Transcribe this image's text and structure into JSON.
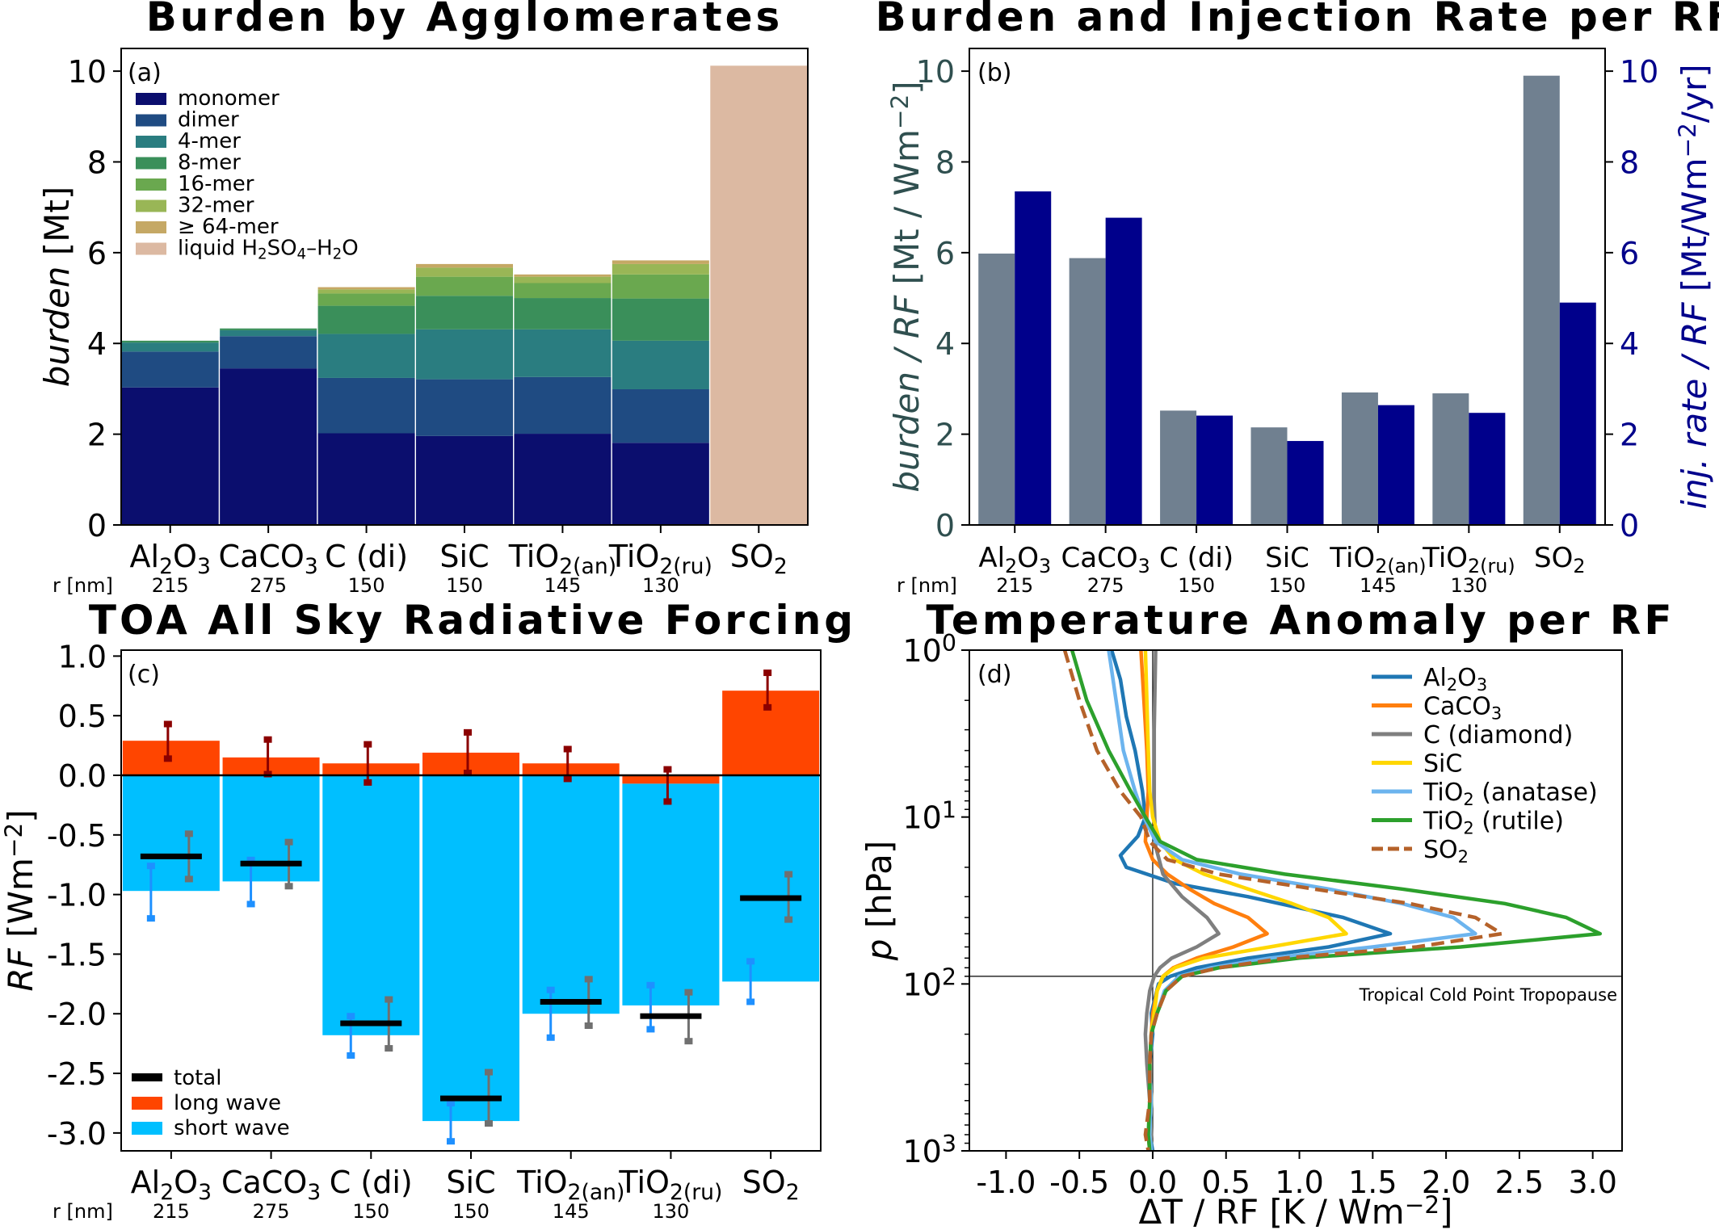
{
  "colors": {
    "monomer": "#0b0e6e",
    "dimer": "#1f4b82",
    "mer4": "#2a7d80",
    "mer8": "#3a8f5a",
    "mer16": "#6aa84f",
    "mer32": "#99b656",
    "mer64": "#c5a865",
    "liquid": "#dcb9a2",
    "burden_rf": "#708090",
    "inj_rf": "#00008b",
    "b_axis": "#2f4f4f",
    "longwave": "#ff4500",
    "shortwave": "#00bfff",
    "total": "#000000",
    "lw_err": "#8b0000",
    "sw_err": "#1e90ff",
    "tot_err": "#707070"
  },
  "categories": [
    {
      "main": "Al",
      "sub": "2",
      "rest": "O",
      "sub2": "3",
      "r": "215"
    },
    {
      "main": "CaCO",
      "sub": "3",
      "rest": "",
      "sub2": "",
      "r": "275"
    },
    {
      "main": "C (di)",
      "sub": "",
      "rest": "",
      "sub2": "",
      "r": "150"
    },
    {
      "main": "SiC",
      "sub": "",
      "rest": "",
      "sub2": "",
      "r": "150"
    },
    {
      "main": "TiO",
      "sub": "2(an)",
      "rest": "",
      "sub2": "",
      "r": "145"
    },
    {
      "main": "TiO",
      "sub": "2(ru)",
      "rest": "",
      "sub2": "",
      "r": "130"
    },
    {
      "main": "SO",
      "sub": "2",
      "rest": "",
      "sub2": "",
      "r": ""
    }
  ],
  "r_label": "r [nm]",
  "chart_data": [
    {
      "panel": "(a)",
      "type": "bar",
      "title": "Burden by Agglomerates",
      "ylabel": "burden [Mt]",
      "ylim": [
        0,
        10.5
      ],
      "yticks": [
        0,
        2,
        4,
        6,
        8,
        10
      ],
      "legend": [
        "monomer",
        "dimer",
        "4-mer",
        "8-mer",
        "16-mer",
        "32-mer",
        "≥ 64-mer",
        "liquid H₂SO₄–H₂O"
      ],
      "series": [
        {
          "name": "monomer",
          "values": [
            3.03,
            3.45,
            2.02,
            1.96,
            2.01,
            1.81,
            0
          ]
        },
        {
          "name": "dimer",
          "values": [
            0.79,
            0.71,
            1.22,
            1.25,
            1.25,
            1.18,
            0
          ]
        },
        {
          "name": "4-mer",
          "values": [
            0.2,
            0.13,
            0.97,
            1.1,
            1.05,
            1.07,
            0
          ]
        },
        {
          "name": "8-mer",
          "values": [
            0.04,
            0.04,
            0.62,
            0.74,
            0.69,
            0.93,
            0
          ]
        },
        {
          "name": "16-mer",
          "values": [
            0,
            0,
            0.27,
            0.42,
            0.33,
            0.53,
            0
          ]
        },
        {
          "name": "32-mer",
          "values": [
            0,
            0,
            0.09,
            0.2,
            0.14,
            0.23,
            0
          ]
        },
        {
          "name": "≥ 64-mer",
          "values": [
            0,
            0,
            0.05,
            0.08,
            0.05,
            0.08,
            0
          ]
        },
        {
          "name": "liquid H₂SO₄–H₂O",
          "values": [
            0,
            0,
            0,
            0,
            0,
            0,
            10.12
          ]
        }
      ]
    },
    {
      "panel": "(b)",
      "type": "bar",
      "title": "Burden and Injection Rate per RF",
      "ylabel_left": "burden / RF [Mt / Wm⁻²]",
      "ylabel_right": "inj. rate / RF [Mt/Wm⁻²/yr]",
      "ylim": [
        0,
        10.5
      ],
      "yticks": [
        0,
        2,
        4,
        6,
        8,
        10
      ],
      "series": [
        {
          "name": "burden / RF",
          "values": [
            5.98,
            5.88,
            2.52,
            2.15,
            2.92,
            2.9,
            9.9
          ]
        },
        {
          "name": "inj. rate / RF",
          "values": [
            7.35,
            6.77,
            2.41,
            1.85,
            2.64,
            2.47,
            4.9
          ]
        }
      ]
    },
    {
      "panel": "(c)",
      "type": "bar",
      "title": "TOA All Sky Radiative Forcing",
      "ylabel": "RF [Wm⁻²]",
      "ylim": [
        -3.15,
        1.05
      ],
      "yticks": [
        1.0,
        0.5,
        0.0,
        -0.5,
        -1.0,
        -1.5,
        -2.0,
        -2.5,
        -3.0
      ],
      "ytick_labels": [
        "1.0",
        "0.5",
        "0.0",
        "-0.5",
        "-1.0",
        "-1.5",
        "-2.0",
        "-2.5",
        "-3.0"
      ],
      "legend": [
        "total",
        "long wave",
        "short wave"
      ],
      "long_wave": [
        0.29,
        0.15,
        0.1,
        0.19,
        0.1,
        -0.07,
        0.71
      ],
      "long_wave_err": [
        [
          0.14,
          0.43
        ],
        [
          0.01,
          0.3
        ],
        [
          -0.06,
          0.26
        ],
        [
          0.02,
          0.36
        ],
        [
          -0.03,
          0.22
        ],
        [
          -0.22,
          0.05
        ],
        [
          0.57,
          0.86
        ]
      ],
      "short_wave": [
        -0.97,
        -0.89,
        -2.18,
        -2.9,
        -2.0,
        -1.93,
        -1.73
      ],
      "short_wave_err": [
        [
          -1.2,
          -0.76
        ],
        [
          -1.08,
          -0.71
        ],
        [
          -2.35,
          -2.02
        ],
        [
          -3.07,
          -2.75
        ],
        [
          -2.2,
          -1.8
        ],
        [
          -2.13,
          -1.76
        ],
        [
          -1.9,
          -1.56
        ]
      ],
      "total": [
        -0.68,
        -0.74,
        -2.08,
        -2.71,
        -1.9,
        -2.02,
        -1.03
      ],
      "total_err": [
        [
          -0.87,
          -0.49
        ],
        [
          -0.93,
          -0.56
        ],
        [
          -2.29,
          -1.88
        ],
        [
          -2.92,
          -2.49
        ],
        [
          -2.1,
          -1.71
        ],
        [
          -2.23,
          -1.82
        ],
        [
          -1.21,
          -0.83
        ]
      ]
    },
    {
      "panel": "(d)",
      "type": "line",
      "title": "Temperature Anomaly per RF",
      "xlabel": "ΔT / RF [K / Wm⁻²]",
      "ylabel": "p [hPa]",
      "xlim": [
        -1.25,
        3.2
      ],
      "xticks": [
        -1.0,
        -0.5,
        0.0,
        0.5,
        1.0,
        1.5,
        2.0,
        2.5,
        3.0
      ],
      "xtick_labels": [
        "-1.0",
        "-0.5",
        "0.0",
        "0.5",
        "1.0",
        "1.5",
        "2.0",
        "2.5",
        "3.0"
      ],
      "ylog": true,
      "ylim": [
        1,
        1000
      ],
      "ytick_base": "10",
      "ytick_exps": [
        "0",
        "1",
        "2",
        "3"
      ],
      "annotation": "Tropical Cold Point Tropopause",
      "tropopause_hPa": 90,
      "series": [
        {
          "name": "Al₂O₃",
          "color": "#1f77b4",
          "dash": false,
          "p": [
            1,
            1.5,
            2.5,
            4,
            7,
            10,
            13,
            17,
            20,
            25,
            30,
            40,
            50,
            60,
            70,
            80,
            90,
            100,
            150,
            200,
            300,
            500,
            800,
            1000
          ],
          "t": [
            -0.28,
            -0.22,
            -0.18,
            -0.12,
            -0.07,
            -0.05,
            -0.1,
            -0.22,
            -0.18,
            0.15,
            0.65,
            1.3,
            1.62,
            1.2,
            0.65,
            0.3,
            0.12,
            0.04,
            -0.01,
            0.0,
            -0.02,
            -0.01,
            -0.02,
            0.0
          ]
        },
        {
          "name": "CaCO₃",
          "color": "#ff7f0e",
          "dash": false,
          "p": [
            1,
            2,
            4,
            7,
            10,
            14,
            18,
            22,
            27,
            33,
            40,
            50,
            60,
            70,
            80,
            90,
            110,
            150,
            200,
            300,
            500,
            800,
            1000
          ],
          "t": [
            -0.08,
            -0.06,
            -0.04,
            -0.03,
            -0.04,
            -0.05,
            0.0,
            0.1,
            0.25,
            0.42,
            0.65,
            0.78,
            0.55,
            0.3,
            0.14,
            0.07,
            0.03,
            0.0,
            -0.01,
            -0.02,
            -0.01,
            -0.03,
            -0.02
          ]
        },
        {
          "name": "C (diamond)",
          "color": "#7f7f7f",
          "dash": false,
          "p": [
            1,
            3,
            8,
            15,
            22,
            30,
            40,
            50,
            60,
            70,
            80,
            90,
            110,
            150,
            200,
            300,
            500,
            800,
            1000
          ],
          "t": [
            0.02,
            0.01,
            0.01,
            0.02,
            0.07,
            0.2,
            0.37,
            0.45,
            0.3,
            0.13,
            0.05,
            0.01,
            -0.02,
            -0.04,
            -0.05,
            -0.04,
            -0.02,
            -0.01,
            -0.02
          ]
        },
        {
          "name": "SiC",
          "color": "#ffd700",
          "dash": false,
          "p": [
            1,
            2,
            4,
            7,
            10,
            14,
            18,
            22,
            27,
            33,
            40,
            50,
            60,
            70,
            80,
            90,
            110,
            150,
            200,
            300,
            500,
            800,
            1000
          ],
          "t": [
            -0.05,
            -0.04,
            -0.03,
            -0.02,
            0.0,
            0.05,
            0.15,
            0.35,
            0.65,
            0.95,
            1.2,
            1.32,
            0.8,
            0.35,
            0.15,
            0.07,
            0.03,
            0.01,
            -0.01,
            -0.02,
            -0.01,
            -0.02,
            -0.01
          ]
        },
        {
          "name": "TiO₂ (anatase)",
          "color": "#6cb4ee",
          "dash": false,
          "p": [
            1,
            2,
            4,
            7,
            10,
            14,
            18,
            22,
            27,
            33,
            40,
            50,
            60,
            70,
            80,
            90,
            110,
            150,
            200,
            300,
            500,
            800,
            1000
          ],
          "t": [
            -0.3,
            -0.25,
            -0.2,
            -0.12,
            -0.06,
            0.02,
            0.2,
            0.6,
            1.2,
            1.7,
            2.05,
            2.2,
            1.5,
            0.8,
            0.4,
            0.18,
            0.08,
            0.03,
            -0.01,
            -0.02,
            -0.01,
            -0.02,
            -0.01
          ]
        },
        {
          "name": "TiO₂ (rutile)",
          "color": "#2ca02c",
          "dash": false,
          "p": [
            1,
            2,
            4,
            7,
            10,
            14,
            18,
            22,
            27,
            33,
            40,
            50,
            60,
            70,
            80,
            90,
            110,
            150,
            200,
            300,
            500,
            800,
            1000
          ],
          "t": [
            -0.55,
            -0.45,
            -0.3,
            -0.15,
            -0.05,
            0.05,
            0.3,
            0.9,
            1.7,
            2.4,
            2.82,
            3.05,
            2.1,
            1.0,
            0.45,
            0.2,
            0.09,
            0.03,
            -0.01,
            -0.02,
            -0.02,
            -0.03,
            -0.02
          ]
        },
        {
          "name": "SO₂",
          "color": "#b5622a",
          "dash": true,
          "p": [
            1,
            2,
            4,
            7,
            10,
            14,
            18,
            22,
            27,
            33,
            40,
            50,
            60,
            70,
            80,
            90,
            110,
            150,
            200,
            300,
            500,
            800,
            1000
          ],
          "t": [
            -0.6,
            -0.5,
            -0.38,
            -0.22,
            -0.08,
            -0.02,
            0.1,
            0.45,
            1.1,
            1.75,
            2.2,
            2.38,
            1.8,
            0.9,
            0.45,
            0.2,
            0.09,
            0.03,
            -0.01,
            -0.02,
            -0.02,
            -0.05,
            -0.03
          ]
        }
      ]
    }
  ]
}
